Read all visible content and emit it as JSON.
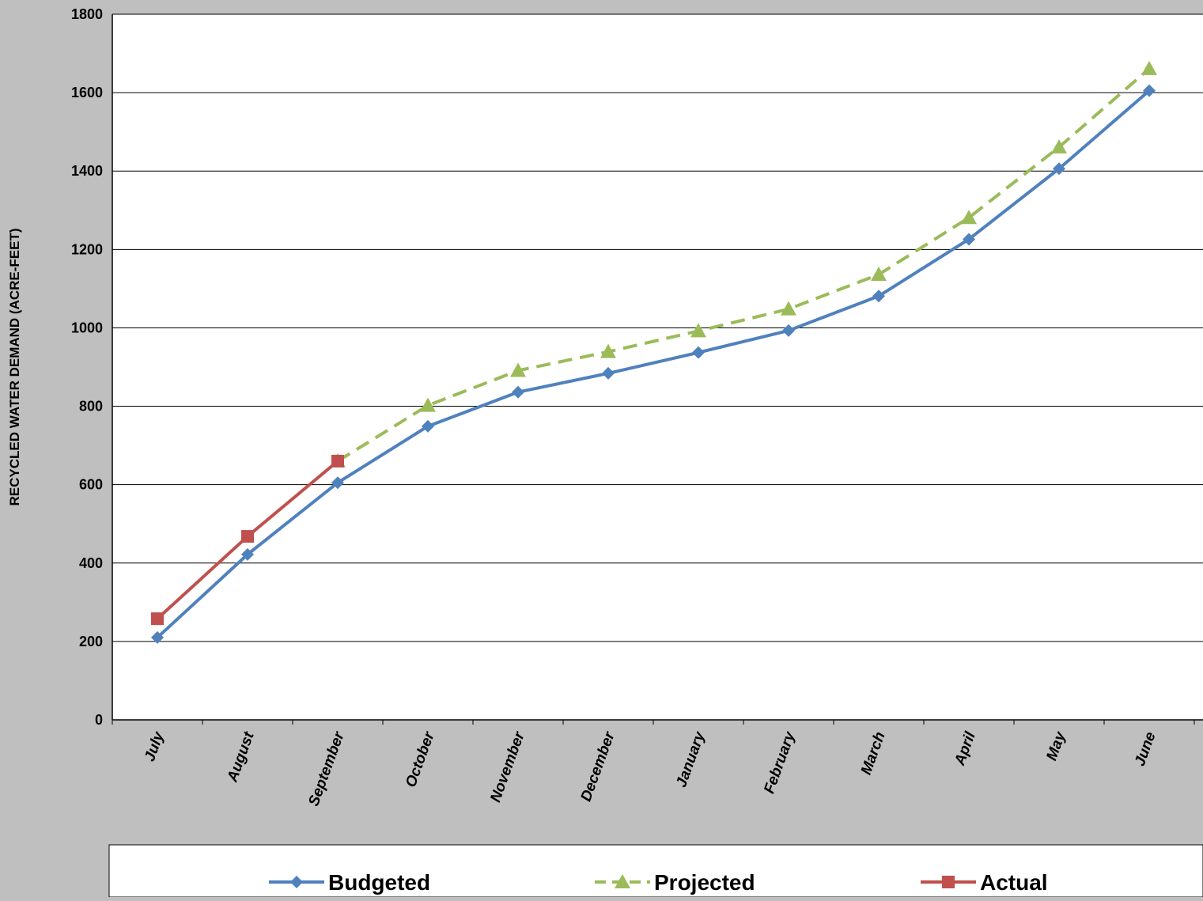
{
  "chart_data": {
    "type": "line",
    "title": "",
    "xlabel": "",
    "ylabel": "RECYCLED WATER DEMAND (ACRE-FEET)",
    "ylim": [
      0,
      1800
    ],
    "yticks": [
      0,
      200,
      400,
      600,
      800,
      1000,
      1200,
      1400,
      1600,
      1800
    ],
    "grid": "horizontal",
    "legend_position": "bottom",
    "categories": [
      "July",
      "August",
      "September",
      "October",
      "November",
      "December",
      "January",
      "February",
      "March",
      "April",
      "May",
      "June"
    ],
    "series": [
      {
        "name": "Budgeted",
        "color": "#4f81bd",
        "marker": "diamond",
        "dash": "solid",
        "values": [
          210,
          422,
          605,
          749,
          836,
          884,
          937,
          993,
          1081,
          1226,
          1406,
          1605
        ]
      },
      {
        "name": "Projected",
        "color": "#9bbb59",
        "marker": "triangle",
        "dash": "dashed",
        "values": [
          null,
          null,
          660,
          802,
          891,
          939,
          992,
          1048,
          1136,
          1281,
          1461,
          1661
        ]
      },
      {
        "name": "Actual",
        "color": "#c0504d",
        "marker": "square",
        "dash": "solid",
        "values": [
          258,
          468,
          660,
          null,
          null,
          null,
          null,
          null,
          null,
          null,
          null,
          null
        ]
      }
    ]
  }
}
